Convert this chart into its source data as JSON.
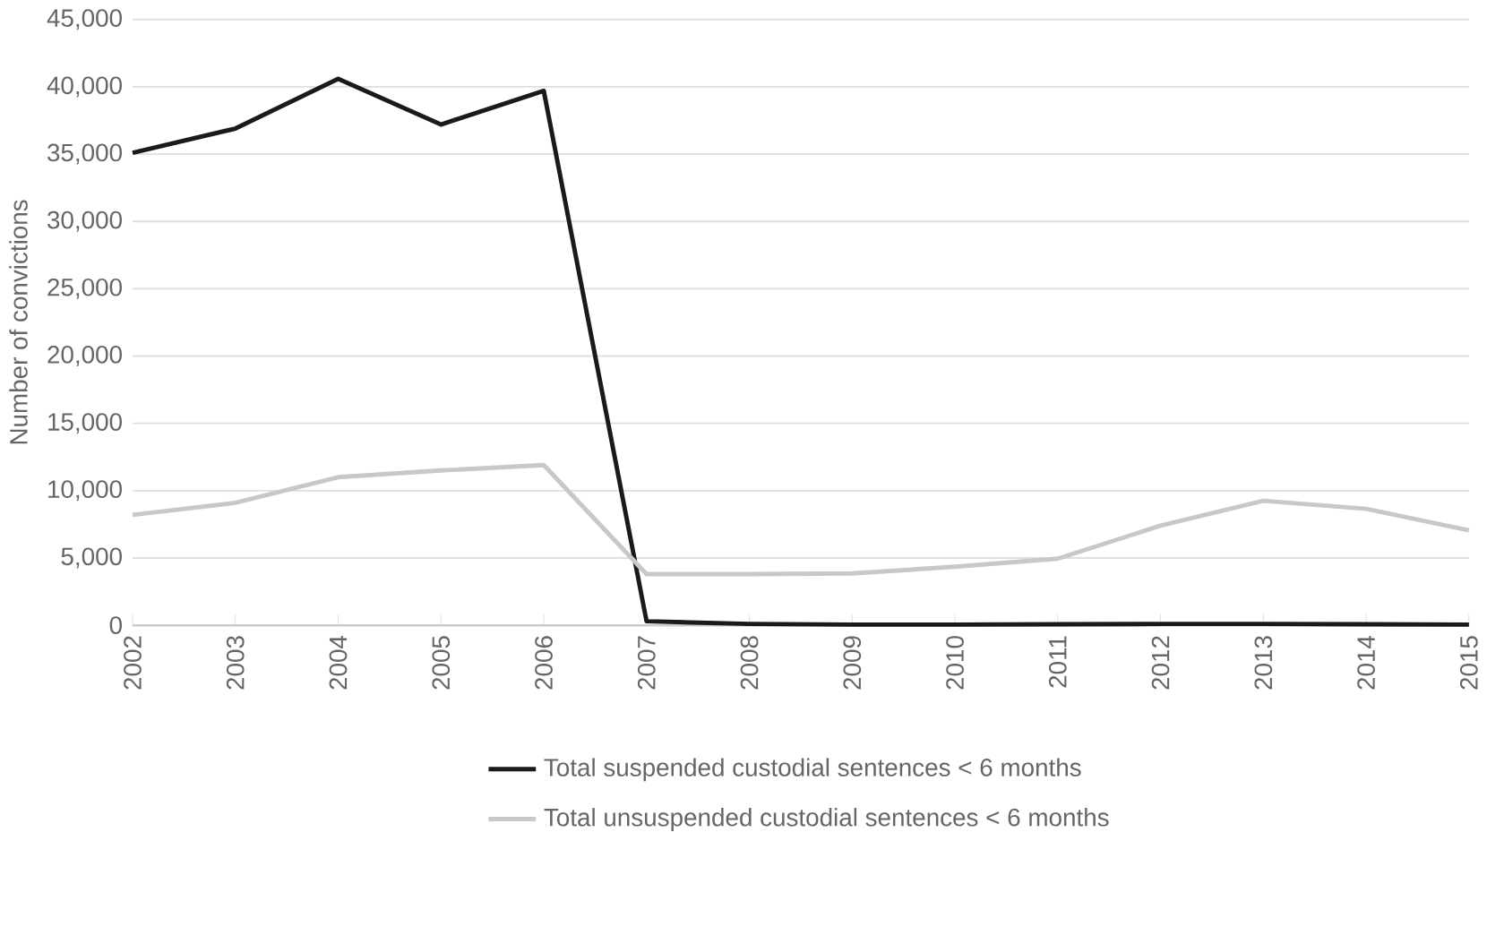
{
  "chart_data": {
    "type": "line",
    "ylabel": "Number of convictions",
    "categories": [
      "2002",
      "2003",
      "2004",
      "2005",
      "2006",
      "2007",
      "2008",
      "2009",
      "2010",
      "2011",
      "2012",
      "2013",
      "2014",
      "2015"
    ],
    "ylim": [
      0,
      45000
    ],
    "yticks": [
      {
        "value": 0,
        "label": "0"
      },
      {
        "value": 5000,
        "label": "5,000"
      },
      {
        "value": 10000,
        "label": "10,000"
      },
      {
        "value": 15000,
        "label": "15,000"
      },
      {
        "value": 20000,
        "label": "20,000"
      },
      {
        "value": 25000,
        "label": "25,000"
      },
      {
        "value": 30000,
        "label": "30,000"
      },
      {
        "value": 35000,
        "label": "35,000"
      },
      {
        "value": 40000,
        "label": "40,000"
      },
      {
        "value": 45000,
        "label": "45,000"
      }
    ],
    "grid": "y",
    "legend": "bottom",
    "marker": "none",
    "line_style": "solid",
    "series": [
      {
        "name": "Total suspended custodial sentences < 6 months",
        "color": "#1a1a1a",
        "values": [
          35100,
          36900,
          40600,
          37200,
          39700,
          300,
          100,
          50,
          50,
          80,
          100,
          100,
          80,
          50
        ]
      },
      {
        "name": "Total unsuspended custodial sentences < 6 months",
        "color": "#c8c8c8",
        "values": [
          8200,
          9100,
          11000,
          11500,
          11900,
          3800,
          3800,
          3850,
          4350,
          4950,
          7400,
          9250,
          8650,
          7050
        ]
      }
    ]
  }
}
